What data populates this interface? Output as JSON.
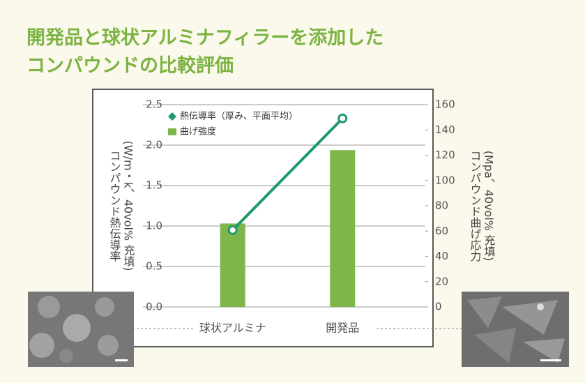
{
  "chart_data": {
    "type": "bar",
    "title": [
      "開発品と球状アルミナフィラーを添加した",
      "コンパウンドの比較評価"
    ],
    "categories": [
      "球状アルミナ",
      "開発品"
    ],
    "ylabel": [
      "コンパウンド熱伝導率",
      "(W/m・k、40vol% 充填)"
    ],
    "y2label": [
      "コンパウンド曲げ応力",
      "(Mpa、40vol% 充填)"
    ],
    "ylim": [
      0,
      2.5
    ],
    "yticks": [
      {
        "value": 0,
        "label": "0.0"
      },
      0.5,
      {
        "value": 1,
        "label": "1.0"
      },
      1.5,
      {
        "value": 2,
        "label": "2.0"
      },
      2.5
    ],
    "y2lim": [
      0,
      160
    ],
    "y2ticks": [
      0,
      20,
      40,
      60,
      80,
      100,
      120,
      140,
      160
    ],
    "grid": true,
    "legend": "upper left",
    "series": [
      {
        "name": "熱伝導率（厚み、平面平均）",
        "type": "line",
        "color": "#1f9a6a",
        "values": [
          0.95,
          2.33
        ]
      },
      {
        "name": "曲げ強度",
        "type": "bar",
        "axis": "y2",
        "color": "#7db64a",
        "values": [
          66,
          124
        ]
      }
    ]
  }
}
